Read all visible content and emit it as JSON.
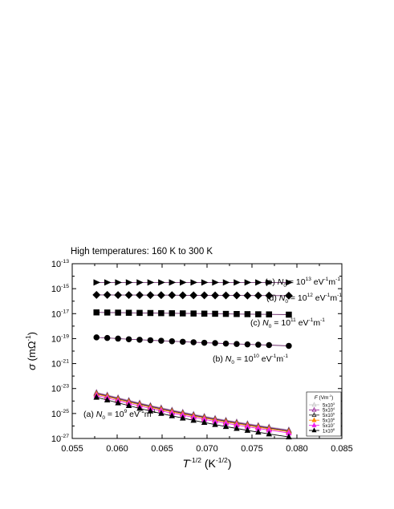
{
  "chart_data": {
    "type": "line",
    "title": "High temperatures: 160 K to 300 K",
    "xlabel": {
      "base": "T",
      "sup": "-1/2",
      "unit_open": " (K",
      "unit_sup": "-1/2",
      "unit_close": ")"
    },
    "ylabel": {
      "base": "σ",
      "unit_open": " (mΩ",
      "unit_sup": "-1",
      "unit_close": ")"
    },
    "x_range": [
      0.055,
      0.085
    ],
    "y_scale": "log",
    "y_range_exponents": [
      -27,
      -13
    ],
    "x_ticks": [
      "0.055",
      "0.060",
      "0.065",
      "0.070",
      "0.075",
      "0.080",
      "0.085"
    ],
    "y_tick_exponents": [
      "-27",
      "-25",
      "-23",
      "-21",
      "-19",
      "-17",
      "-15",
      "-13"
    ],
    "x": [
      0.0577,
      0.0589,
      0.0601,
      0.0613,
      0.0625,
      0.0637,
      0.0649,
      0.0661,
      0.0673,
      0.0685,
      0.0697,
      0.0709,
      0.0721,
      0.0733,
      0.0745,
      0.0757,
      0.0769,
      0.0791
    ],
    "groups": [
      {
        "label": {
          "prefix": "(a) ",
          "mid": " = 10",
          "exp": "9",
          "units": " eV",
          "u1": "-1",
          "m": "m",
          "u2": "-1"
        },
        "marker": "triangle",
        "series": [
          {
            "field": "5x10",
            "field_exp": "3",
            "color": "#c8c8c8",
            "fill": "none",
            "y_log": [
              -23.3,
              -23.5,
              -23.72,
              -23.93,
              -24.14,
              -24.34,
              -24.53,
              -24.71,
              -24.88,
              -25.05,
              -25.21,
              -25.37,
              -25.52,
              -25.66,
              -25.8,
              -25.94,
              -26.07,
              -26.3
            ]
          },
          {
            "field": "5x10",
            "field_exp": "4",
            "color": "#9b2d9b",
            "fill": "none",
            "y_log": [
              -23.35,
              -23.55,
              -23.77,
              -23.98,
              -24.19,
              -24.39,
              -24.58,
              -24.76,
              -24.93,
              -25.1,
              -25.26,
              -25.42,
              -25.57,
              -25.71,
              -25.85,
              -25.99,
              -26.12,
              -26.35
            ]
          },
          {
            "field": "5x10",
            "field_exp": "5",
            "color": "#333333",
            "fill": "none",
            "y_log": [
              -23.4,
              -23.6,
              -23.82,
              -24.03,
              -24.24,
              -24.44,
              -24.63,
              -24.81,
              -24.98,
              -25.15,
              -25.31,
              -25.47,
              -25.62,
              -25.76,
              -25.9,
              -26.04,
              -26.17,
              -26.4
            ]
          },
          {
            "field": "5x10",
            "field_exp": "6",
            "color": "#ff8c00",
            "fill": "#ff8c00",
            "y_log": [
              -23.45,
              -23.65,
              -23.88,
              -24.09,
              -24.3,
              -24.5,
              -24.69,
              -24.87,
              -25.04,
              -25.21,
              -25.37,
              -25.53,
              -25.68,
              -25.82,
              -25.96,
              -26.1,
              -26.23,
              -26.46
            ]
          },
          {
            "field": "5x10",
            "field_exp": "7",
            "color": "#ee22ee",
            "fill": "#ee22ee",
            "y_log": [
              -23.55,
              -23.75,
              -23.98,
              -24.19,
              -24.4,
              -24.6,
              -24.79,
              -24.97,
              -25.14,
              -25.31,
              -25.47,
              -25.63,
              -25.78,
              -25.92,
              -26.06,
              -26.2,
              -26.33,
              -26.56
            ]
          },
          {
            "field": "1x10",
            "field_exp": "8",
            "color": "#000000",
            "fill": "#000000",
            "y_log": [
              -23.7,
              -23.92,
              -24.15,
              -24.37,
              -24.59,
              -24.8,
              -25.0,
              -25.19,
              -25.37,
              -25.55,
              -25.72,
              -25.89,
              -26.05,
              -26.2,
              -26.35,
              -26.5,
              -26.64,
              -26.88
            ]
          }
        ]
      },
      {
        "label": {
          "prefix": "(b) ",
          "mid": " = 10",
          "exp": "10",
          "units": " eV",
          "u1": "-1",
          "m": "m",
          "u2": "-1"
        },
        "marker": "circle",
        "series_y_log": [
          -18.9,
          -18.95,
          -19.0,
          -19.05,
          -19.09,
          -19.13,
          -19.17,
          -19.21,
          -19.25,
          -19.29,
          -19.33,
          -19.36,
          -19.4,
          -19.43,
          -19.46,
          -19.49,
          -19.52,
          -19.58
        ]
      },
      {
        "label": {
          "prefix": "(c) ",
          "mid": " = 10",
          "exp": "11",
          "units": " eV",
          "u1": "-1",
          "m": "m",
          "u2": "-1"
        },
        "marker": "square",
        "series_y_log": [
          -16.9,
          -16.91,
          -16.92,
          -16.93,
          -16.94,
          -16.95,
          -16.96,
          -16.97,
          -16.98,
          -16.99,
          -17.0,
          -17.01,
          -17.02,
          -17.03,
          -17.04,
          -17.05,
          -17.06,
          -17.08
        ]
      },
      {
        "label": {
          "prefix": "(d) ",
          "mid": " = 10",
          "exp": "12",
          "units": " eV",
          "u1": "-1",
          "m": "m",
          "u2": "-1"
        },
        "marker": "diamond",
        "series_y_log": [
          -15.5,
          -15.5,
          -15.51,
          -15.51,
          -15.51,
          -15.52,
          -15.52,
          -15.52,
          -15.53,
          -15.53,
          -15.53,
          -15.54,
          -15.54,
          -15.54,
          -15.55,
          -15.55,
          -15.55,
          -15.56
        ]
      },
      {
        "label": {
          "prefix": "(e) ",
          "mid": " = 10",
          "exp": "13",
          "units": " eV",
          "u1": "-1",
          "m": "m",
          "u2": "-1"
        },
        "marker": "triangle-right",
        "series_y_log": [
          -14.5,
          -14.5,
          -14.5,
          -14.5,
          -14.5,
          -14.5,
          -14.5,
          -14.5,
          -14.5,
          -14.5,
          -14.5,
          -14.5,
          -14.5,
          -14.5,
          -14.5,
          -14.5,
          -14.5,
          -14.5
        ]
      }
    ],
    "group_label_symbol": {
      "base": "N",
      "sub": "0"
    },
    "legend": {
      "title_base": "F",
      "title_open": " (Vm",
      "title_sup": "-1",
      "title_close": ")",
      "position": "lower-right"
    }
  }
}
